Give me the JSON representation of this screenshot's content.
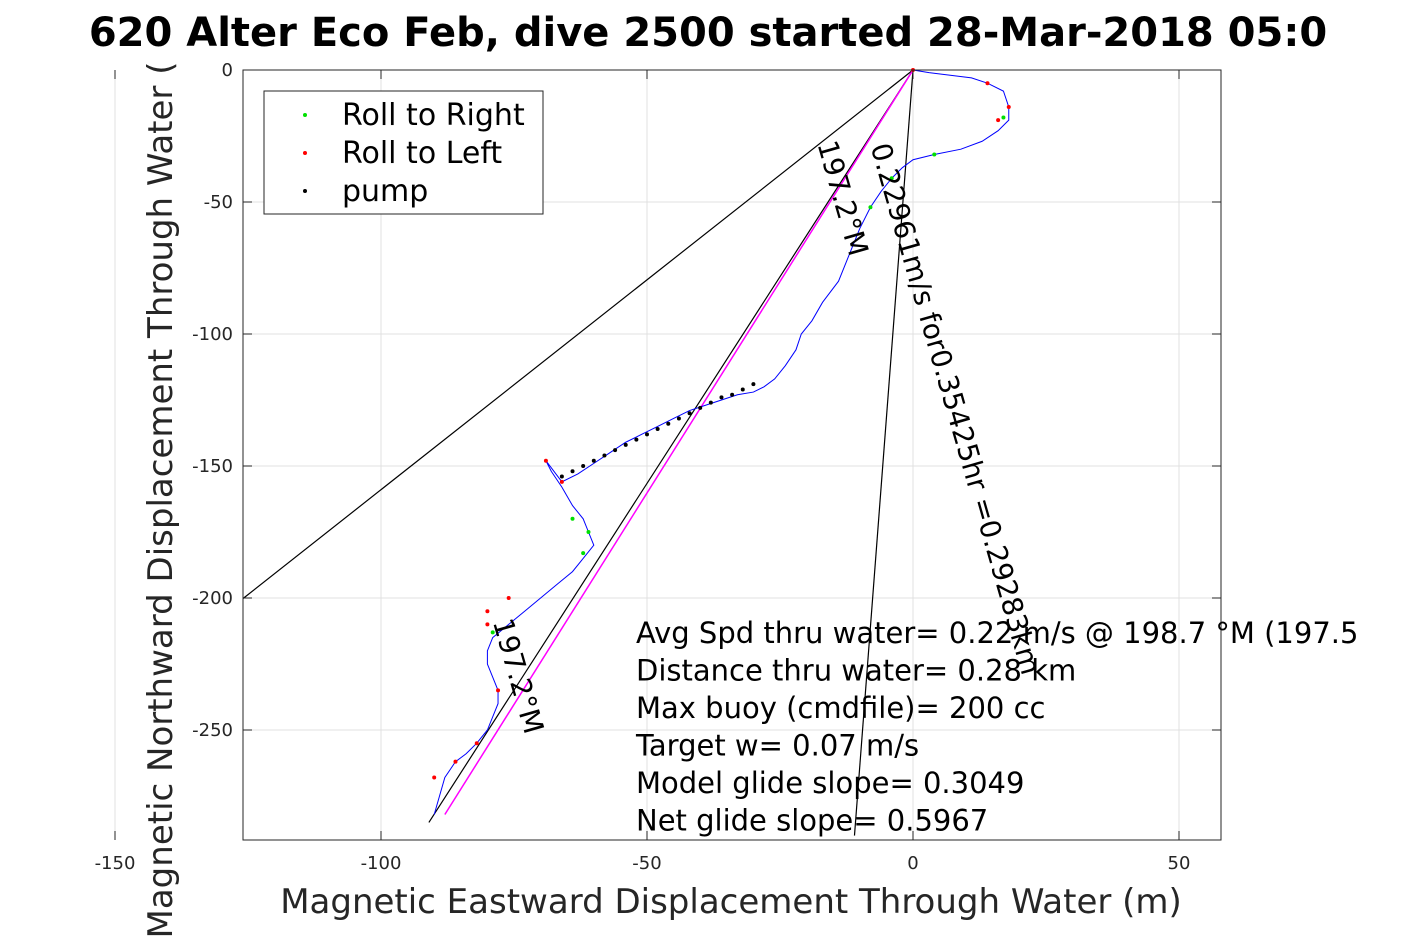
{
  "chart_data": {
    "type": "scatter",
    "title": "620 Alter Eco Feb, dive 2500 started 28-Mar-2018 05:0",
    "xlabel": "Magnetic Eastward Displacement Through Water (m)",
    "ylabel": "Magnetic Northward Displacement Through Water (",
    "xlim": [
      -255,
      115
    ],
    "ylim": [
      -290,
      0
    ],
    "xticks": [
      -250,
      -200,
      -150,
      -100,
      -50,
      0,
      50,
      100
    ],
    "yticks": [
      0,
      -50,
      -100,
      -150,
      -200,
      -250
    ],
    "grid": true,
    "legend_position": "top-left",
    "legend": [
      {
        "name": "Roll to Right",
        "color": "#00e000"
      },
      {
        "name": "Roll to Left",
        "color": "#ff0000"
      },
      {
        "name": "pump",
        "color": "#000000"
      }
    ],
    "colors": {
      "track": "#0000ff",
      "course_line": "#ff00ff",
      "reference_lines": "#000000"
    },
    "track": {
      "x": [
        0,
        3,
        7,
        11,
        14,
        17,
        18,
        18,
        16,
        13,
        9,
        4,
        0,
        -2,
        -4,
        -6,
        -8,
        -10,
        -12,
        -14,
        -17,
        -19,
        -21,
        -22,
        -24,
        -26,
        -28,
        -30,
        -33,
        -36,
        -39,
        -42,
        -45,
        -48,
        -51,
        -54,
        -57,
        -60,
        -63,
        -66,
        -69,
        -68,
        -66,
        -64,
        -62,
        -61,
        -60,
        -62,
        -64,
        -67,
        -70,
        -73,
        -76,
        -79,
        -80,
        -80,
        -79,
        -78,
        -78,
        -79,
        -80,
        -82,
        -84,
        -86,
        -87,
        -88,
        -89,
        -90
      ],
      "y": [
        0,
        -1,
        -2,
        -3,
        -5,
        -8,
        -14,
        -19,
        -23,
        -27,
        -30,
        -32,
        -34,
        -37,
        -41,
        -46,
        -52,
        -60,
        -70,
        -80,
        -88,
        -95,
        -100,
        -106,
        -112,
        -117,
        -120,
        -122,
        -123,
        -125,
        -127,
        -129,
        -132,
        -135,
        -138,
        -141,
        -145,
        -149,
        -153,
        -156,
        -148,
        -152,
        -158,
        -165,
        -170,
        -175,
        -180,
        -185,
        -190,
        -195,
        -200,
        -205,
        -210,
        -215,
        -220,
        -225,
        -230,
        -235,
        -240,
        -245,
        -250,
        -255,
        -259,
        -262,
        -265,
        -268,
        -275,
        -282
      ]
    },
    "roll_right": {
      "x": [
        17,
        4,
        -4,
        -8,
        -64,
        -61,
        -62,
        -79
      ],
      "y": [
        -18,
        -32,
        -41,
        -52,
        -170,
        -175,
        -183,
        -213
      ]
    },
    "roll_left": {
      "x": [
        0,
        14,
        18,
        16,
        -69,
        -66,
        -76,
        -80,
        -80,
        -78,
        -82,
        -86,
        -90
      ],
      "y": [
        0,
        -5,
        -14,
        -19,
        -148,
        -156,
        -200,
        -205,
        -210,
        -235,
        -255,
        -262,
        -268
      ]
    },
    "pump": {
      "x": [
        -30,
        -32,
        -34,
        -36,
        -38,
        -40,
        -42,
        -44,
        -46,
        -48,
        -50,
        -52,
        -54,
        -56,
        -58,
        -60,
        -62,
        -64,
        -66
      ],
      "y": [
        -119,
        -121,
        -123,
        -124,
        -126,
        -128,
        -130,
        -132,
        -134,
        -136,
        -138,
        -140,
        -142,
        -144,
        -146,
        -148,
        -150,
        -152,
        -154
      ]
    },
    "course_line": {
      "x": [
        0,
        -88
      ],
      "y": [
        0,
        -282
      ]
    },
    "reference_lines": [
      {
        "x": [
          0,
          -156
        ],
        "y": [
          0,
          -248
        ]
      },
      {
        "x": [
          0,
          -11
        ],
        "y": [
          0,
          -290
        ]
      },
      {
        "x": [
          0,
          -91
        ],
        "y": [
          0,
          -285
        ]
      }
    ],
    "rotated_annotations": [
      {
        "text": "197.2°M",
        "x": -18,
        "y": -28,
        "angle": 74
      },
      {
        "text": "0.22961m/s for0.35425hr =0.29283km",
        "x": -8,
        "y": -29,
        "angle": 74
      },
      {
        "text": "197.2°M",
        "x": -79,
        "y": -209,
        "angle": 74
      }
    ],
    "annotations": [
      "Avg Spd thru water=  0.22 m/s @ 198.7 °M (197.5",
      "Distance thru water=  0.28 km",
      "Max buoy (cmdfile)= 200 cc",
      "Target w= 0.07 m/s",
      "Model glide slope= 0.3049",
      "Net glide slope= 0.5967"
    ]
  }
}
